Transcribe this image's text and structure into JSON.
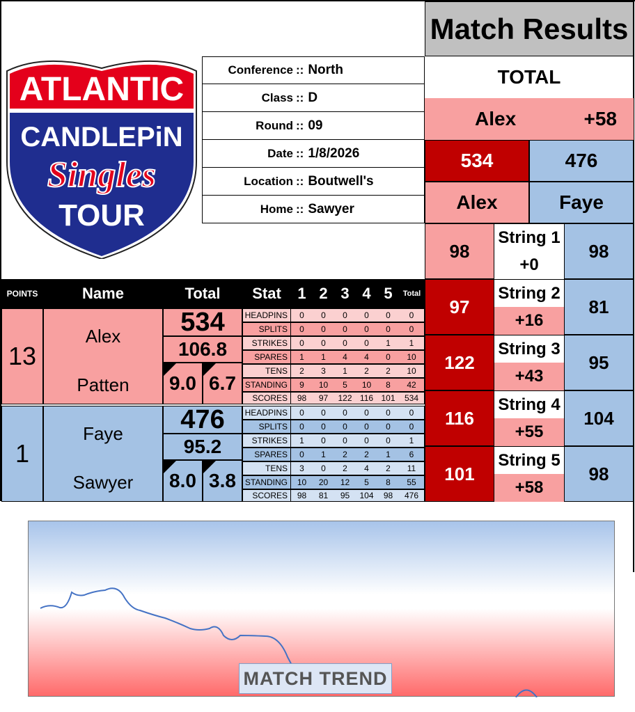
{
  "logo": {
    "line1": "ATLANTIC",
    "line2": "CANDLEPiN",
    "line3": "Singles",
    "line4": "TOUR"
  },
  "info": [
    {
      "label": "Conference",
      "value": "North"
    },
    {
      "label": "Class",
      "value": "D"
    },
    {
      "label": "Round",
      "value": "09"
    },
    {
      "label": "Date",
      "value": "1/8/2026"
    },
    {
      "label": "Location",
      "value": "Boutwell's"
    },
    {
      "label": "Home",
      "value": "Sawyer"
    }
  ],
  "sep": "::",
  "match_results": {
    "title": "Match Results",
    "total_label": "TOTAL",
    "leader_name": "Alex",
    "leader_diff": "+58",
    "total_a": "534",
    "total_b": "476",
    "name_a": "Alex",
    "name_b": "Faye",
    "strings": [
      {
        "label": "String 1",
        "a": "98",
        "b": "98",
        "diff": "+0"
      },
      {
        "label": "String 2",
        "a": "97",
        "b": "81",
        "diff": "+16"
      },
      {
        "label": "String 3",
        "a": "122",
        "b": "95",
        "diff": "+43"
      },
      {
        "label": "String 4",
        "a": "116",
        "b": "104",
        "diff": "+55"
      },
      {
        "label": "String 5",
        "a": "101",
        "b": "98",
        "diff": "+58"
      }
    ]
  },
  "table_header": {
    "points": "POINTS",
    "name": "Name",
    "total": "Total",
    "stat": "Stat",
    "cols": [
      "1",
      "2",
      "3",
      "4",
      "5"
    ],
    "total_col": "Total"
  },
  "bowlers": [
    {
      "points": "13",
      "first": "Alex",
      "last": "Patten",
      "total": "534",
      "avg": "106.8",
      "left_stat": "9.0",
      "right_stat": "6.7",
      "stats": [
        {
          "label": "HEADPINS",
          "v": [
            "0",
            "0",
            "0",
            "0",
            "0",
            "0"
          ]
        },
        {
          "label": "SPLITS",
          "v": [
            "0",
            "0",
            "0",
            "0",
            "0",
            "0"
          ]
        },
        {
          "label": "STRIKES",
          "v": [
            "0",
            "0",
            "0",
            "0",
            "1",
            "1"
          ]
        },
        {
          "label": "SPARES",
          "v": [
            "1",
            "1",
            "4",
            "4",
            "0",
            "10"
          ]
        },
        {
          "label": "TENS",
          "v": [
            "2",
            "3",
            "1",
            "2",
            "2",
            "10"
          ]
        },
        {
          "label": "STANDING",
          "v": [
            "9",
            "10",
            "5",
            "10",
            "8",
            "42"
          ]
        },
        {
          "label": "SCORES",
          "v": [
            "98",
            "97",
            "122",
            "116",
            "101",
            "534"
          ]
        }
      ]
    },
    {
      "points": "1",
      "first": "Faye",
      "last": "Sawyer",
      "total": "476",
      "avg": "95.2",
      "left_stat": "8.0",
      "right_stat": "3.8",
      "stats": [
        {
          "label": "HEADPINS",
          "v": [
            "0",
            "0",
            "0",
            "0",
            "0",
            "0"
          ]
        },
        {
          "label": "SPLITS",
          "v": [
            "0",
            "0",
            "0",
            "0",
            "0",
            "0"
          ]
        },
        {
          "label": "STRIKES",
          "v": [
            "1",
            "0",
            "0",
            "0",
            "0",
            "1"
          ]
        },
        {
          "label": "SPARES",
          "v": [
            "0",
            "1",
            "2",
            "2",
            "1",
            "6"
          ]
        },
        {
          "label": "TENS",
          "v": [
            "3",
            "0",
            "2",
            "4",
            "2",
            "11"
          ]
        },
        {
          "label": "STANDING",
          "v": [
            "10",
            "20",
            "12",
            "5",
            "8",
            "55"
          ]
        },
        {
          "label": "SCORES",
          "v": [
            "98",
            "81",
            "95",
            "104",
            "98",
            "476"
          ]
        }
      ]
    }
  ],
  "chart": {
    "label": "MATCH TREND",
    "colors": {
      "line": "#4472c4",
      "top": "#a8c4ea",
      "bottom": "#ff6a6a"
    }
  }
}
